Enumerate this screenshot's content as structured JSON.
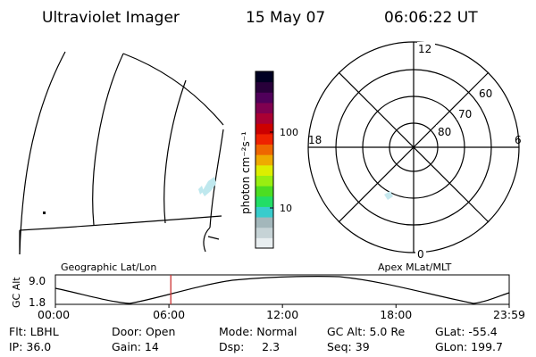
{
  "header": {
    "instrument": "Ultraviolet Imager",
    "date": "15 May 07",
    "time": "06:06:22 UT"
  },
  "colorbar": {
    "unit_label": "photon cm⁻²s⁻¹",
    "tick_labels": [
      "100",
      "10"
    ],
    "colors": [
      "#e8eef0",
      "#c6d3d6",
      "#a3b7bb",
      "#38cccc",
      "#22dd66",
      "#4cdd22",
      "#99ee11",
      "#ddee00",
      "#eeaa00",
      "#ee6600",
      "#ee2200",
      "#cc0000",
      "#aa0033",
      "#800050",
      "#50005a",
      "#28003a",
      "#000022"
    ]
  },
  "polar_plot": {
    "clock_labels": {
      "top": "12",
      "left": "18",
      "right": "6",
      "bottom": "0"
    },
    "latitude_labels": [
      "60",
      "70",
      "80"
    ]
  },
  "timeline": {
    "left_label": "Geographic Lat/Lon",
    "right_label": "Apex MLat/MLT",
    "y_axis_label": "GC Alt",
    "y_ticks": [
      "9.0",
      "1.8"
    ],
    "x_ticks": [
      "00:00",
      "06:00",
      "12:00",
      "18:00",
      "23:59"
    ],
    "marker_time": "06:06",
    "marker_color": "#cc3333"
  },
  "status": {
    "row1": [
      {
        "text": "Flt: LBHL"
      },
      {
        "text": "Door: Open"
      },
      {
        "text": "Mode: Normal"
      },
      {
        "text": "GC Alt: 5.0 Re"
      },
      {
        "text": "GLat: -55.4"
      }
    ],
    "row2": [
      {
        "text": "IP: 36.0"
      },
      {
        "text": "Gain: 14"
      },
      {
        "text": "Dsp:     2.3"
      },
      {
        "text": "Seq: 39"
      },
      {
        "text": "GLon: 199.7"
      }
    ]
  }
}
